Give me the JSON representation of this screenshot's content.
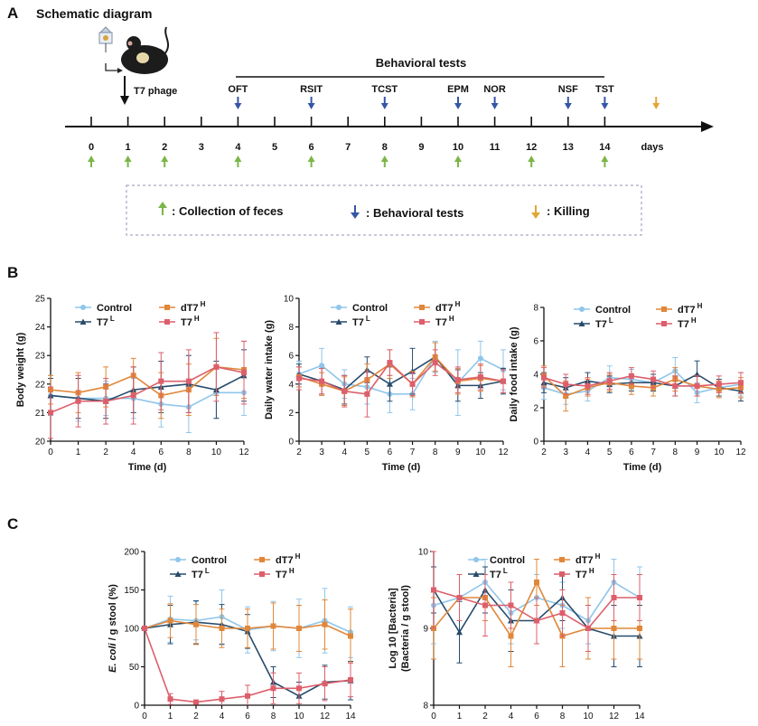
{
  "panel_a": {
    "letter": "A",
    "title": "Schematic diagram",
    "phage_label": "T7 phage",
    "tests_header": "Behavioral tests",
    "timeline_days": [
      "0",
      "1",
      "2",
      "3",
      "4",
      "5",
      "6",
      "7",
      "8",
      "9",
      "10",
      "11",
      "12",
      "13",
      "14"
    ],
    "days_label": "days",
    "tests": [
      {
        "name": "OFT",
        "day": 4
      },
      {
        "name": "RSIT",
        "day": 6
      },
      {
        "name": "TCST",
        "day": 8
      },
      {
        "name": "EPM",
        "day": 10
      },
      {
        "name": "NOR",
        "day": 11
      },
      {
        "name": "NSF",
        "day": 13
      },
      {
        "name": "TST",
        "day": 14
      }
    ],
    "killing_day": 15.4,
    "feces_days": [
      0,
      1,
      2,
      4,
      6,
      8,
      10,
      12,
      14
    ],
    "legend": {
      "feces": ": Collection of feces",
      "behavior": ":  Behavioral tests",
      "killing": ": Killing"
    },
    "colors": {
      "feces": "#7ab648",
      "behavior": "#3556a6",
      "killing": "#e3a534"
    }
  },
  "panel_b_letter": "B",
  "panel_c_letter": "C",
  "series_style": {
    "Control": {
      "color": "#8fc6ea",
      "marker": "circle"
    },
    "T7L": {
      "color": "#274b6b",
      "marker": "triangle"
    },
    "dT7H": {
      "color": "#e0873a",
      "marker": "square"
    },
    "T7H": {
      "color": "#dc5f6b",
      "marker": "square"
    }
  },
  "legend_labels": {
    "Control": "Control",
    "T7L": {
      "base": "T7",
      "sup": "L"
    },
    "dT7H": {
      "base": "dT7",
      "sup": "H"
    },
    "T7H": {
      "base": "T7",
      "sup": "H"
    }
  },
  "chart_data": [
    {
      "type": "line",
      "xlabel": "Time (d)",
      "ylabel": "Body weight (g)",
      "x": [
        0,
        1,
        2,
        4,
        6,
        8,
        10,
        12
      ],
      "ylim": [
        20,
        25
      ],
      "yticks": [
        20,
        21,
        22,
        23,
        24,
        25
      ],
      "series": [
        {
          "name": "Control",
          "values": [
            21.6,
            21.5,
            21.5,
            21.5,
            21.3,
            21.2,
            21.7,
            21.7
          ],
          "err": [
            0.7,
            0.8,
            0.6,
            0.7,
            0.8,
            0.9,
            0.9,
            0.8
          ]
        },
        {
          "name": "T7L",
          "values": [
            21.6,
            21.5,
            21.4,
            21.8,
            21.9,
            22.0,
            21.8,
            22.3
          ],
          "err": [
            0.6,
            0.7,
            0.6,
            0.8,
            0.9,
            1.0,
            1.0,
            0.9
          ]
        },
        {
          "name": "dT7H",
          "values": [
            21.8,
            21.7,
            21.9,
            22.3,
            21.6,
            21.8,
            22.6,
            22.5
          ],
          "err": [
            0.5,
            0.7,
            0.7,
            0.6,
            0.8,
            0.9,
            1.0,
            1.0
          ]
        },
        {
          "name": "T7H",
          "values": [
            21.0,
            21.4,
            21.4,
            21.6,
            22.1,
            22.1,
            22.6,
            22.4
          ],
          "err": [
            0.9,
            0.9,
            0.8,
            1.0,
            1.0,
            1.1,
            1.2,
            1.1
          ]
        }
      ]
    },
    {
      "type": "line",
      "xlabel": "Time (d)",
      "ylabel": "Daily water intake (g)",
      "x": [
        2,
        3,
        4,
        5,
        6,
        7,
        8,
        9,
        10,
        12
      ],
      "ylim": [
        0,
        10
      ],
      "yticks": [
        0,
        2,
        4,
        6,
        8,
        10
      ],
      "series": [
        {
          "name": "Control",
          "values": [
            4.7,
            5.3,
            4.0,
            3.8,
            3.3,
            3.3,
            5.9,
            4.1,
            5.8,
            5.0
          ],
          "err": [
            0.9,
            1.2,
            1.0,
            1.2,
            1.3,
            1.1,
            1.1,
            2.3,
            1.2,
            1.4
          ]
        },
        {
          "name": "T7L",
          "values": [
            4.7,
            4.2,
            3.6,
            5.0,
            4.0,
            4.9,
            5.9,
            3.9,
            3.9,
            4.2
          ],
          "err": [
            0.7,
            0.9,
            1.0,
            0.9,
            1.2,
            1.6,
            1.0,
            1.1,
            0.9,
            0.9
          ]
        },
        {
          "name": "dT7H",
          "values": [
            4.5,
            4.0,
            3.5,
            4.3,
            5.4,
            4.0,
            5.9,
            4.2,
            4.4,
            4.2
          ],
          "err": [
            0.7,
            0.8,
            1.0,
            1.1,
            1.0,
            0.9,
            1.0,
            0.9,
            0.9,
            0.8
          ]
        },
        {
          "name": "T7H",
          "values": [
            4.4,
            4.2,
            3.5,
            3.3,
            5.5,
            4.0,
            5.5,
            4.3,
            4.5,
            4.2
          ],
          "err": [
            0.8,
            0.9,
            1.1,
            1.6,
            0.9,
            0.8,
            0.9,
            0.9,
            0.9,
            0.8
          ]
        }
      ]
    },
    {
      "type": "line",
      "xlabel": "Time (d)",
      "ylabel": "Daily food intake (g)",
      "x": [
        2,
        3,
        4,
        5,
        6,
        7,
        8,
        9,
        10,
        12
      ],
      "ylim": [
        0,
        8
      ],
      "yticks": [
        0,
        2,
        4,
        6,
        8
      ],
      "series": [
        {
          "name": "Control",
          "values": [
            3.2,
            2.8,
            3.0,
            3.8,
            3.7,
            3.5,
            4.2,
            2.9,
            3.2,
            3.4
          ],
          "err": [
            0.7,
            0.6,
            0.6,
            0.7,
            0.6,
            0.5,
            0.8,
            0.6,
            0.5,
            0.7
          ]
        },
        {
          "name": "T7L",
          "values": [
            3.5,
            3.2,
            3.6,
            3.4,
            3.5,
            3.5,
            3.3,
            4.0,
            3.2,
            3.0
          ],
          "err": [
            0.6,
            0.6,
            0.5,
            0.5,
            0.5,
            0.5,
            0.6,
            0.8,
            0.5,
            0.6
          ]
        },
        {
          "name": "dT7H",
          "values": [
            3.9,
            2.7,
            3.2,
            3.5,
            3.3,
            3.2,
            3.7,
            3.3,
            3.1,
            3.2
          ],
          "err": [
            0.6,
            0.9,
            0.5,
            0.5,
            0.5,
            0.5,
            0.7,
            0.6,
            0.5,
            0.6
          ]
        },
        {
          "name": "T7H",
          "values": [
            3.8,
            3.4,
            3.3,
            3.6,
            3.9,
            3.7,
            3.3,
            3.3,
            3.4,
            3.5
          ],
          "err": [
            0.6,
            0.6,
            0.5,
            0.5,
            0.5,
            0.5,
            0.6,
            0.6,
            0.5,
            0.6
          ]
        }
      ]
    },
    {
      "type": "line",
      "xlabel": "Time (d)",
      "ylabel_italic": "E. coli",
      "ylabel_rest": " / g stool (%)",
      "x": [
        0,
        1,
        2,
        4,
        6,
        8,
        10,
        12,
        14
      ],
      "ylim": [
        0,
        200
      ],
      "yticks": [
        0,
        50,
        100,
        150,
        200
      ],
      "series": [
        {
          "name": "Control",
          "values": [
            100,
            112,
            110,
            115,
            98,
            103,
            100,
            110,
            95
          ],
          "err": [
            0,
            30,
            25,
            35,
            30,
            32,
            38,
            42,
            33
          ]
        },
        {
          "name": "T7L",
          "values": [
            100,
            105,
            108,
            105,
            96,
            30,
            12,
            30,
            32
          ],
          "err": [
            0,
            25,
            28,
            26,
            22,
            20,
            18,
            22,
            25
          ]
        },
        {
          "name": "dT7H",
          "values": [
            100,
            110,
            105,
            100,
            100,
            103,
            100,
            105,
            90
          ],
          "err": [
            0,
            22,
            26,
            25,
            25,
            30,
            30,
            32,
            35
          ]
        },
        {
          "name": "T7H",
          "values": [
            100,
            8,
            4,
            8,
            12,
            22,
            22,
            28,
            33
          ],
          "err": [
            0,
            7,
            2,
            10,
            14,
            20,
            20,
            22,
            22
          ]
        }
      ]
    },
    {
      "type": "line",
      "xlabel": "Time (d)",
      "ylabel_line1": "Log 10 [Bacteria]",
      "ylabel_line2": "(Bacteria / g stool)",
      "x": [
        0,
        1,
        2,
        4,
        6,
        8,
        10,
        12,
        14
      ],
      "ylim": [
        8,
        10
      ],
      "yticks": [
        8,
        9,
        10
      ],
      "series": [
        {
          "name": "Control",
          "values": [
            9.3,
            9.4,
            9.6,
            9.2,
            9.4,
            9.3,
            9.1,
            9.6,
            9.4
          ],
          "err": [
            0.5,
            0.3,
            0.3,
            0.4,
            0.3,
            0.3,
            0.3,
            0.3,
            0.4
          ]
        },
        {
          "name": "T7L",
          "values": [
            9.5,
            8.95,
            9.5,
            9.1,
            9.1,
            9.4,
            9.0,
            8.9,
            8.9
          ],
          "err": [
            0.3,
            0.4,
            0.3,
            0.4,
            0.3,
            0.3,
            0.3,
            0.4,
            0.4
          ]
        },
        {
          "name": "dT7H",
          "values": [
            9.0,
            9.4,
            9.4,
            8.9,
            9.6,
            8.9,
            9.0,
            9.0,
            9.0
          ],
          "err": [
            0.4,
            0.3,
            0.3,
            0.4,
            0.3,
            0.4,
            0.4,
            0.4,
            0.4
          ]
        },
        {
          "name": "T7H",
          "values": [
            9.5,
            9.4,
            9.3,
            9.3,
            9.1,
            9.2,
            9.0,
            9.4,
            9.4
          ],
          "err": [
            0.5,
            0.3,
            0.4,
            0.3,
            0.3,
            0.3,
            0.3,
            0.3,
            0.3
          ]
        }
      ]
    }
  ]
}
